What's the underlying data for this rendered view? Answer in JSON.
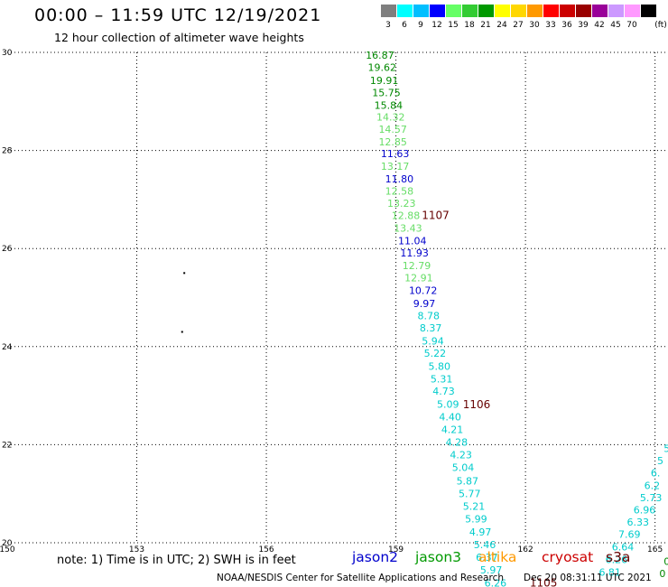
{
  "title": "00:00 – 11:59 UTC 12/19/2021",
  "subtitle": "12 hour collection of altimeter wave heights",
  "legend": {
    "unit": "(ft)",
    "entries": [
      {
        "label": "3",
        "color": "#7f7f7f"
      },
      {
        "label": "6",
        "color": "#00ffff"
      },
      {
        "label": "9",
        "color": "#00bfff"
      },
      {
        "label": "12",
        "color": "#0000ff"
      },
      {
        "label": "15",
        "color": "#66ff66"
      },
      {
        "label": "18",
        "color": "#33cc33"
      },
      {
        "label": "21",
        "color": "#009900"
      },
      {
        "label": "24",
        "color": "#ffff00"
      },
      {
        "label": "27",
        "color": "#ffd700"
      },
      {
        "label": "30",
        "color": "#ff9900"
      },
      {
        "label": "33",
        "color": "#ff0000"
      },
      {
        "label": "36",
        "color": "#cc0000"
      },
      {
        "label": "39",
        "color": "#990000"
      },
      {
        "label": "42",
        "color": "#990099"
      },
      {
        "label": "45",
        "color": "#cc99ff"
      },
      {
        "label": "70",
        "color": "#ff99ff"
      },
      {
        "label": "",
        "color": "#000000"
      }
    ]
  },
  "axes": {
    "lon_labels": [
      "150",
      "153",
      "156",
      "159",
      "162",
      "165"
    ],
    "lat_labels": [
      "30",
      "28",
      "26",
      "24",
      "22",
      "20"
    ]
  },
  "colors": {
    "c6": "#00cccc",
    "c15": "#66dd66",
    "c21": "#008800",
    "c12": "#0000cc",
    "s3a": "#660000"
  },
  "map_data": {
    "lon_range": [
      150,
      165.3
    ],
    "lat_range": [
      20,
      30
    ],
    "track_labels": [
      {
        "lat": 29.87,
        "lon": 158.3,
        "text": "16.87",
        "c": "c21"
      },
      {
        "lat": 29.62,
        "lon": 158.35,
        "text": "19.62",
        "c": "c21"
      },
      {
        "lat": 29.36,
        "lon": 158.4,
        "text": "19.91",
        "c": "c21"
      },
      {
        "lat": 29.11,
        "lon": 158.45,
        "text": "15.75",
        "c": "c21"
      },
      {
        "lat": 28.85,
        "lon": 158.5,
        "text": "15.84",
        "c": "c21"
      },
      {
        "lat": 28.61,
        "lon": 158.55,
        "text": "14.32",
        "c": "c15"
      },
      {
        "lat": 28.36,
        "lon": 158.6,
        "text": "14.57",
        "c": "c15"
      },
      {
        "lat": 28.1,
        "lon": 158.6,
        "text": "12.85",
        "c": "c15"
      },
      {
        "lat": 27.86,
        "lon": 158.65,
        "text": "11.63",
        "c": "c12"
      },
      {
        "lat": 27.61,
        "lon": 158.65,
        "text": "13.17",
        "c": "c15"
      },
      {
        "lat": 27.35,
        "lon": 158.75,
        "text": "11.80",
        "c": "c12"
      },
      {
        "lat": 27.1,
        "lon": 158.75,
        "text": "12.58",
        "c": "c15"
      },
      {
        "lat": 26.85,
        "lon": 158.8,
        "text": "13.23",
        "c": "c15"
      },
      {
        "lat": 26.6,
        "lon": 158.9,
        "text": "12.88",
        "c": "c15"
      },
      {
        "lat": 26.34,
        "lon": 158.95,
        "text": "13.43",
        "c": "c15"
      },
      {
        "lat": 26.09,
        "lon": 159.05,
        "text": "11.04",
        "c": "c12"
      },
      {
        "lat": 25.84,
        "lon": 159.1,
        "text": "11.93",
        "c": "c12"
      },
      {
        "lat": 25.58,
        "lon": 159.15,
        "text": "12.79",
        "c": "c15"
      },
      {
        "lat": 25.33,
        "lon": 159.2,
        "text": "12.91",
        "c": "c15"
      },
      {
        "lat": 25.07,
        "lon": 159.3,
        "text": "10.72",
        "c": "c12"
      },
      {
        "lat": 24.81,
        "lon": 159.4,
        "text": "9.97",
        "c": "c12"
      },
      {
        "lat": 24.56,
        "lon": 159.5,
        "text": "8.78",
        "c": "c6"
      },
      {
        "lat": 24.31,
        "lon": 159.55,
        "text": "8.37",
        "c": "c6"
      },
      {
        "lat": 24.04,
        "lon": 159.6,
        "text": "5.94",
        "c": "c6"
      },
      {
        "lat": 23.79,
        "lon": 159.65,
        "text": "5.22",
        "c": "c6"
      },
      {
        "lat": 23.53,
        "lon": 159.75,
        "text": "5.80",
        "c": "c6"
      },
      {
        "lat": 23.27,
        "lon": 159.8,
        "text": "5.31",
        "c": "c6"
      },
      {
        "lat": 23.02,
        "lon": 159.85,
        "text": "4.73",
        "c": "c6"
      },
      {
        "lat": 22.75,
        "lon": 159.95,
        "text": "5.09",
        "c": "c6"
      },
      {
        "lat": 22.5,
        "lon": 160.0,
        "text": "4.40",
        "c": "c6"
      },
      {
        "lat": 22.24,
        "lon": 160.05,
        "text": "4.21",
        "c": "c6"
      },
      {
        "lat": 21.98,
        "lon": 160.15,
        "text": "4.28",
        "c": "c6"
      },
      {
        "lat": 21.72,
        "lon": 160.25,
        "text": "4.23",
        "c": "c6"
      },
      {
        "lat": 21.46,
        "lon": 160.3,
        "text": "5.04",
        "c": "c6"
      },
      {
        "lat": 21.19,
        "lon": 160.4,
        "text": "5.87",
        "c": "c6"
      },
      {
        "lat": 20.93,
        "lon": 160.45,
        "text": "5.77",
        "c": "c6"
      },
      {
        "lat": 20.67,
        "lon": 160.55,
        "text": "5.21",
        "c": "c6"
      },
      {
        "lat": 20.41,
        "lon": 160.6,
        "text": "5.99",
        "c": "c6"
      },
      {
        "lat": 20.15,
        "lon": 160.7,
        "text": "4.97",
        "c": "c6"
      },
      {
        "lat": 19.89,
        "lon": 160.8,
        "text": "5.46",
        "c": "c6"
      },
      {
        "lat": 19.63,
        "lon": 160.85,
        "text": "6.37",
        "c": "c6"
      },
      {
        "lat": 19.37,
        "lon": 160.95,
        "text": "5.97",
        "c": "c6"
      },
      {
        "lat": 19.11,
        "lon": 161.05,
        "text": "6.26",
        "c": "c6"
      },
      {
        "lat": 21.85,
        "lon": 165.2,
        "text": "5",
        "c": "c6"
      },
      {
        "lat": 21.6,
        "lon": 165.05,
        "text": "5",
        "c": "c6"
      },
      {
        "lat": 21.35,
        "lon": 164.9,
        "text": "6.",
        "c": "c6"
      },
      {
        "lat": 21.1,
        "lon": 164.75,
        "text": "6.2",
        "c": "c6"
      },
      {
        "lat": 20.85,
        "lon": 164.65,
        "text": "5.73",
        "c": "c6"
      },
      {
        "lat": 20.6,
        "lon": 164.5,
        "text": "6.96",
        "c": "c6"
      },
      {
        "lat": 20.35,
        "lon": 164.35,
        "text": "6.33",
        "c": "c6"
      },
      {
        "lat": 20.1,
        "lon": 164.15,
        "text": "7.69",
        "c": "c6"
      },
      {
        "lat": 19.84,
        "lon": 164.0,
        "text": "6.64",
        "c": "c6"
      },
      {
        "lat": 19.59,
        "lon": 163.85,
        "text": "6.26",
        "c": "c6"
      },
      {
        "lat": 19.33,
        "lon": 163.7,
        "text": "6.81",
        "c": "c6"
      },
      {
        "lat": 19.55,
        "lon": 165.2,
        "text": "0",
        "c": "c21"
      },
      {
        "lat": 19.3,
        "lon": 165.1,
        "text": "0",
        "c": "c21"
      }
    ],
    "obs_labels": [
      {
        "lat": 26.6,
        "lon": 159.6,
        "text": "1107",
        "c": "s3a"
      },
      {
        "lat": 22.74,
        "lon": 160.55,
        "text": "1106",
        "c": "s3a"
      },
      {
        "lat": 19.11,
        "lon": 162.1,
        "text": "1105",
        "c": "s3a"
      }
    ],
    "points": [
      {
        "lat": 25.5,
        "lon": 154.1
      },
      {
        "lat": 24.3,
        "lon": 154.05
      }
    ]
  },
  "note": "note: 1) Time is in UTC; 2) SWH is in feet",
  "missions": {
    "jason2": "jason2",
    "jason3": "jason3",
    "altika": "altika",
    "cryosat": "cryosat",
    "s3a": "s3a"
  },
  "credit": "NOAA/NESDIS Center for Satellite Applications and Research",
  "timestamp": "Dec 20 08:31:11 UTC 2021"
}
